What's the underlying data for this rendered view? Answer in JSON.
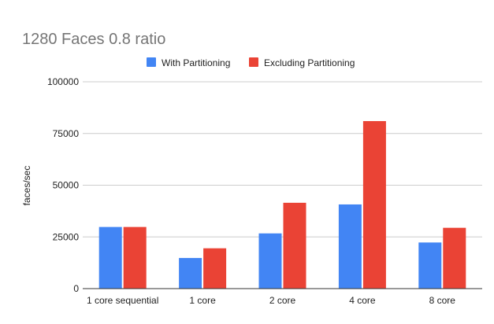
{
  "chart_data": {
    "type": "bar",
    "title": "1280 Faces 0.8 ratio",
    "xlabel": "",
    "ylabel": "faces/sec",
    "categories": [
      "1 core sequential",
      "1 core",
      "2 core",
      "4 core",
      "8 core"
    ],
    "series": [
      {
        "name": "With Partitioning",
        "color": "#4285f4",
        "values": [
          29800,
          14800,
          26700,
          40700,
          22300
        ]
      },
      {
        "name": "Excluding Partitioning",
        "color": "#ea4335",
        "values": [
          29800,
          19500,
          41500,
          81000,
          29400
        ]
      }
    ],
    "ylim": [
      0,
      100000
    ],
    "yticks": [
      0,
      25000,
      50000,
      75000,
      100000
    ],
    "grid": true,
    "legend_position": "top"
  }
}
